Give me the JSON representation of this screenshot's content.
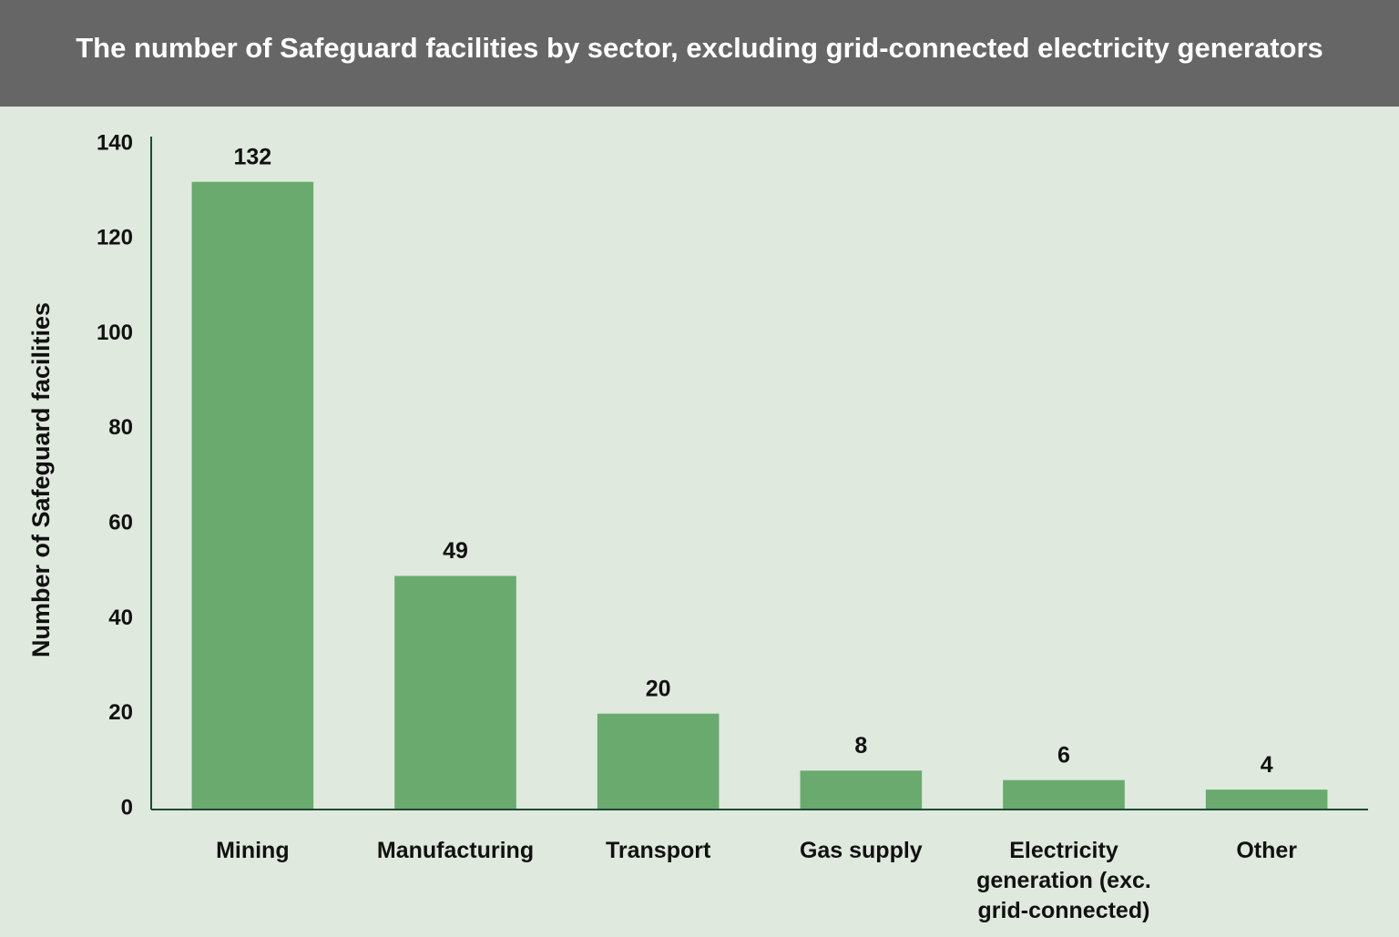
{
  "chart_data": {
    "type": "bar",
    "title": "The number of Safeguard facilities by sector, excluding grid-connected electricity generators",
    "y_label": "Number of Safeguard facilities",
    "categories": [
      "Mining",
      "Manufacturing",
      "Transport",
      "Gas supply",
      "Electricity generation (exc. grid-connected)",
      "Other"
    ],
    "values": [
      132,
      49,
      20,
      8,
      6,
      4
    ],
    "color": "#6aaa6f",
    "ylim": [
      0,
      140
    ],
    "yticks": [
      0,
      20,
      40,
      60,
      80,
      100,
      120,
      140
    ],
    "grid": false
  }
}
